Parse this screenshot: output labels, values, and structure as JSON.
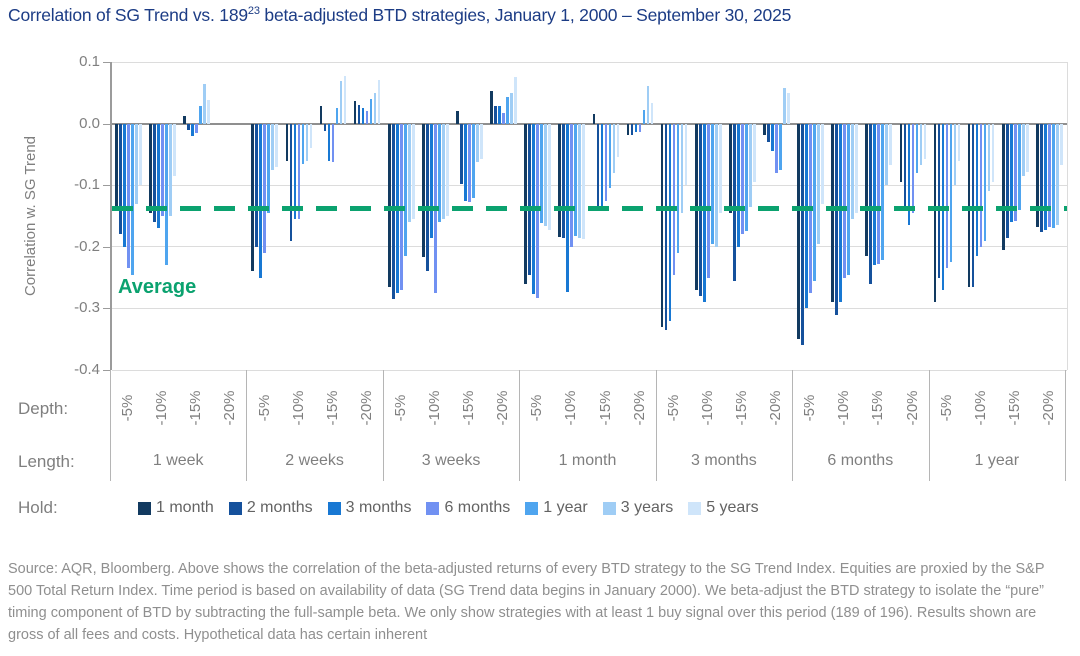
{
  "title": {
    "prefix": "Correlation of SG Trend vs. 189",
    "sup": "23",
    "suffix": " beta-adjusted BTD strategies, January 1, 2000 – September 30, 2025"
  },
  "footer": "Source: AQR, Bloomberg. Above shows the correlation of the beta-adjusted returns of every BTD strategy to the SG Trend Index. Equities are proxied by the S&P 500 Total Return Index. Time period is based on availability of data (SG Trend data begins in January 2000). We beta-adjust the BTD strategy to isolate the “pure” timing component of BTD by subtracting the full-sample beta. We only show strategies with at least 1 buy signal over this period (189 of 196). Results shown are gross of all fees and costs. Hypothetical data has certain inherent",
  "chart_data": {
    "type": "bar",
    "ylabel": "Correlation w. SG Trend",
    "ylim": [
      -0.4,
      0.1
    ],
    "yticks": [
      "0.1",
      "0.0",
      "-0.1",
      "-0.2",
      "-0.3",
      "-0.4"
    ],
    "grid": true,
    "average": {
      "value": -0.137,
      "label": "Average",
      "color": "#0ba26f"
    },
    "axis_rows": {
      "depth_label": "Depth:",
      "length_label": "Length:",
      "hold_label": "Hold:"
    },
    "depths": [
      "-5%",
      "-10%",
      "-15%",
      "-20%"
    ],
    "legend": {
      "position": "bottom",
      "series": [
        {
          "name": "1 month",
          "color": "#123a60"
        },
        {
          "name": "2 months",
          "color": "#15519c"
        },
        {
          "name": "3 months",
          "color": "#1878d3"
        },
        {
          "name": "6 months",
          "color": "#7191f2"
        },
        {
          "name": "1 year",
          "color": "#4fa5ef"
        },
        {
          "name": "3 years",
          "color": "#9fcdf5"
        },
        {
          "name": "5 years",
          "color": "#cfe5fa"
        }
      ]
    },
    "groups": [
      {
        "length": "1 week",
        "clusters": [
          [
            -0.14,
            -0.18,
            -0.2,
            -0.235,
            -0.245,
            -0.13,
            -0.1
          ],
          [
            -0.145,
            -0.16,
            -0.17,
            -0.15,
            -0.23,
            -0.15,
            -0.085
          ],
          [
            0.013,
            -0.01,
            -0.02,
            -0.015,
            0.028,
            0.065,
            0.038
          ],
          []
        ]
      },
      {
        "length": "2 weeks",
        "clusters": [
          [
            -0.24,
            -0.2,
            -0.25,
            -0.21,
            -0.145,
            -0.075,
            -0.07
          ],
          [
            -0.06,
            -0.19,
            -0.155,
            -0.155,
            -0.065,
            -0.06,
            -0.04
          ],
          [
            0.028,
            -0.012,
            -0.06,
            -0.063,
            0.025,
            0.069,
            0.077
          ],
          [
            0.037,
            0.03,
            0.025,
            0.02,
            0.04,
            0.05,
            0.07
          ]
        ]
      },
      {
        "length": "3 weeks",
        "clusters": [
          [
            -0.265,
            -0.285,
            -0.275,
            -0.27,
            -0.215,
            -0.16,
            -0.155
          ],
          [
            -0.217,
            -0.24,
            -0.185,
            -0.275,
            -0.16,
            -0.155,
            -0.15
          ],
          [
            0.021,
            -0.098,
            -0.125,
            -0.127,
            -0.12,
            -0.063,
            -0.058
          ],
          [
            0.053,
            0.029,
            0.028,
            0.017,
            0.043,
            0.05,
            0.075
          ]
        ]
      },
      {
        "length": "1 month",
        "clusters": [
          [
            -0.26,
            -0.245,
            -0.277,
            -0.283,
            -0.162,
            -0.167,
            -0.172
          ],
          [
            -0.184,
            -0.186,
            -0.273,
            -0.2,
            -0.182,
            -0.186,
            -0.188
          ],
          [
            0.015,
            -0.135,
            -0.14,
            -0.125,
            -0.105,
            -0.08,
            -0.055
          ],
          [
            -0.018,
            -0.018,
            -0.014,
            -0.013,
            0.022,
            0.061,
            0.034
          ]
        ]
      },
      {
        "length": "3 months",
        "clusters": [
          [
            -0.33,
            -0.335,
            -0.32,
            -0.245,
            -0.21,
            -0.145,
            -0.1
          ],
          [
            -0.27,
            -0.28,
            -0.29,
            -0.25,
            -0.195,
            -0.2,
            -0.145
          ],
          [
            -0.145,
            -0.255,
            -0.2,
            -0.18,
            -0.175,
            -0.135,
            -0.095
          ],
          [
            -0.018,
            -0.03,
            -0.045,
            -0.08,
            -0.076,
            0.058,
            0.05
          ]
        ]
      },
      {
        "length": "6 months",
        "clusters": [
          [
            -0.35,
            -0.36,
            -0.3,
            -0.275,
            -0.255,
            -0.195,
            -0.13
          ],
          [
            -0.29,
            -0.31,
            -0.29,
            -0.25,
            -0.245,
            -0.155,
            -0.145
          ],
          [
            -0.215,
            -0.26,
            -0.23,
            -0.228,
            -0.222,
            -0.1,
            -0.068
          ],
          [
            -0.095,
            -0.14,
            -0.165,
            -0.145,
            -0.08,
            -0.068,
            -0.058
          ]
        ]
      },
      {
        "length": "1 year",
        "clusters": [
          [
            -0.29,
            -0.25,
            -0.27,
            -0.235,
            -0.225,
            -0.1,
            -0.06
          ],
          [
            -0.265,
            -0.265,
            -0.215,
            -0.2,
            -0.19,
            -0.11,
            -0.095
          ],
          [
            -0.205,
            -0.185,
            -0.16,
            -0.158,
            -0.14,
            -0.085,
            -0.078
          ],
          [
            -0.168,
            -0.176,
            -0.172,
            -0.168,
            -0.17,
            -0.165,
            -0.068
          ]
        ]
      }
    ]
  }
}
